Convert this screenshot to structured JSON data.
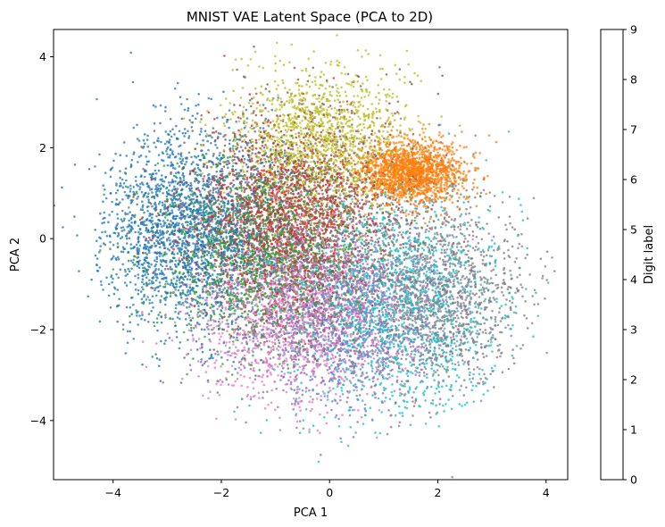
{
  "chart_data": {
    "type": "scatter",
    "title": "MNIST VAE Latent Space (PCA to 2D)",
    "xlabel": "PCA 1",
    "ylabel": "PCA 2",
    "xlim": [
      -5.1,
      4.4
    ],
    "ylim": [
      -5.3,
      4.6
    ],
    "xticks": [
      -4,
      -2,
      0,
      2,
      4
    ],
    "yticks": [
      -4,
      -2,
      0,
      2,
      4
    ],
    "xtick_labels": [
      "−4",
      "−2",
      "0",
      "2",
      "4"
    ],
    "ytick_labels": [
      "−4",
      "−2",
      "0",
      "2",
      "4"
    ],
    "grid": false,
    "colorbar": {
      "label": "Digit label",
      "ticks": [
        0,
        1,
        2,
        3,
        4,
        5,
        6,
        7,
        8,
        9
      ],
      "tick_labels": [
        "0",
        "1",
        "2",
        "3",
        "4",
        "5",
        "6",
        "7",
        "8",
        "9"
      ],
      "range": [
        0,
        9
      ]
    },
    "series": [
      {
        "label": 0,
        "color": "#1f77b4",
        "center": [
          -2.6,
          0.2
        ],
        "spread": [
          0.85,
          1.15
        ],
        "points": 2400
      },
      {
        "label": 1,
        "color": "#ff7f0e",
        "center": [
          1.5,
          1.45
        ],
        "spread": [
          0.5,
          0.35
        ],
        "points": 1700
      },
      {
        "label": 2,
        "color": "#2ca02c",
        "center": [
          -1.2,
          -0.3
        ],
        "spread": [
          1.0,
          1.05
        ],
        "points": 1600
      },
      {
        "label": 3,
        "color": "#d62728",
        "center": [
          -0.9,
          0.4
        ],
        "spread": [
          0.9,
          1.0
        ],
        "points": 1400
      },
      {
        "label": 4,
        "color": "#9467bd",
        "center": [
          0.2,
          -1.6
        ],
        "spread": [
          1.0,
          1.0
        ],
        "points": 1500
      },
      {
        "label": 5,
        "color": "#8c564b",
        "center": [
          -0.4,
          0.7
        ],
        "spread": [
          1.0,
          1.2
        ],
        "points": 1300
      },
      {
        "label": 6,
        "color": "#e377c2",
        "center": [
          -0.6,
          -1.6
        ],
        "spread": [
          1.0,
          1.05
        ],
        "points": 1500
      },
      {
        "label": 7,
        "color": "#7f7f7f",
        "center": [
          2.1,
          -1.2
        ],
        "spread": [
          0.8,
          1.1
        ],
        "points": 1300
      },
      {
        "label": 8,
        "color": "#bcbd22",
        "center": [
          -0.2,
          2.2
        ],
        "spread": [
          0.8,
          0.75
        ],
        "points": 1300
      },
      {
        "label": 9,
        "color": "#17becf",
        "center": [
          1.2,
          -1.5
        ],
        "spread": [
          1.0,
          1.25
        ],
        "points": 1700
      }
    ]
  }
}
